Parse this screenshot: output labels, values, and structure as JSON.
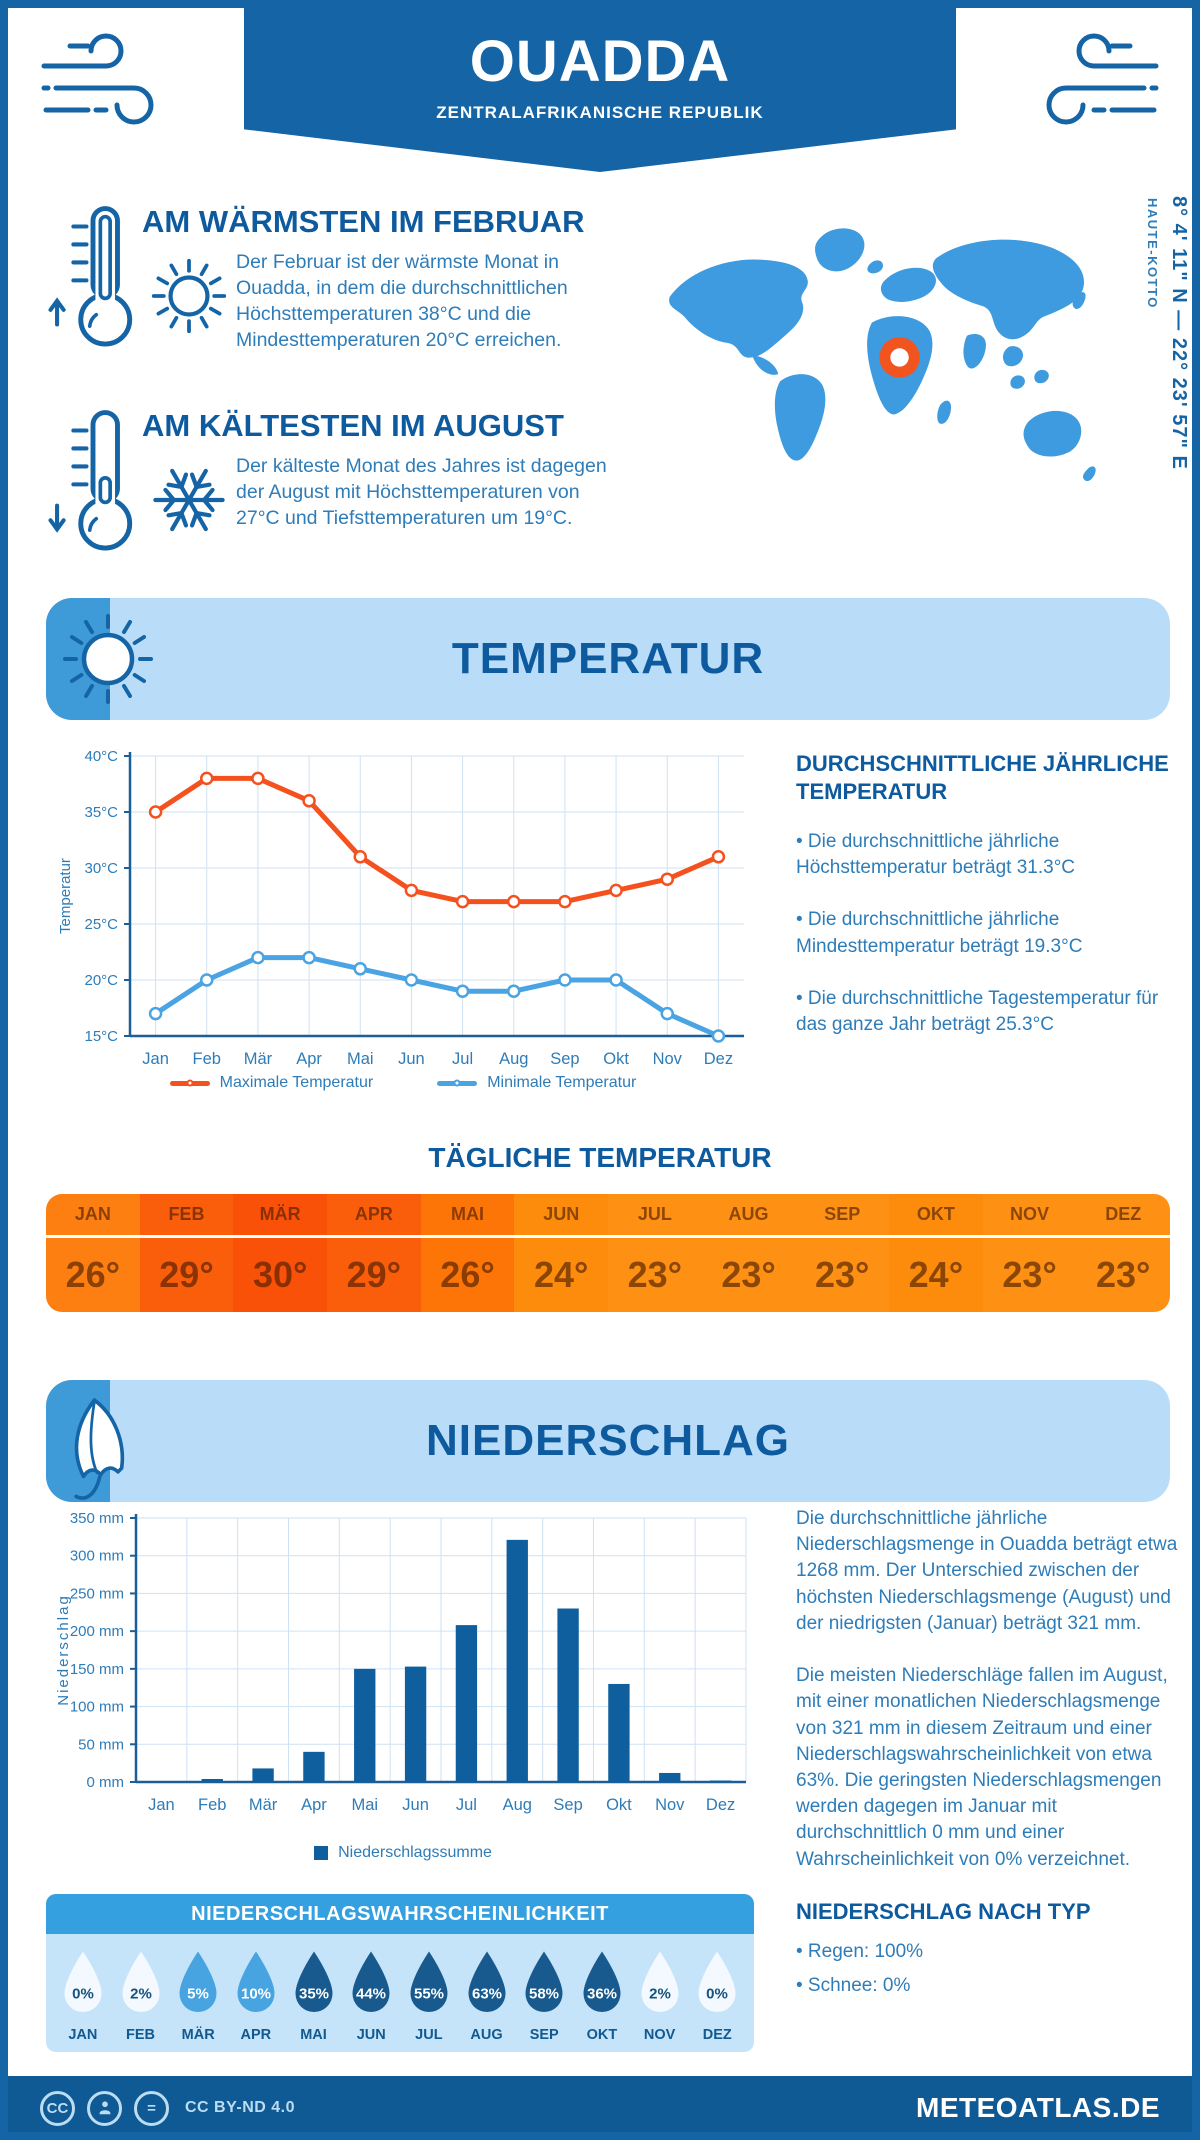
{
  "header": {
    "title": "OUADDA",
    "subtitle": "ZENTRALAFRIKANISCHE REPUBLIK"
  },
  "highlights": {
    "warmest": {
      "title": "AM WÄRMSTEN IM FEBRUAR",
      "text": "Der Februar ist der wärmste Monat in Ouadda, in dem die durchschnittlichen Höchsttemperaturen 38°C und die Mindesttemperaturen 20°C erreichen."
    },
    "coldest": {
      "title": "AM KÄLTESTEN IM AUGUST",
      "text": "Der kälteste Monat des Jahres ist dagegen der August mit Höchsttemperaturen von 27°C und Tiefsttemperaturen um 19°C."
    }
  },
  "map": {
    "coordinates": "8° 4' 11\" N — 22° 23' 57\" E",
    "region": "HAUTE-KOTTO",
    "land_color": "#3e9bdf",
    "marker_color": "#f2541f"
  },
  "sections": {
    "temperature": "TEMPERATUR",
    "precipitation": "NIEDERSCHLAG"
  },
  "chart_data": [
    {
      "type": "line",
      "categories": [
        "Jan",
        "Feb",
        "Mär",
        "Apr",
        "Mai",
        "Jun",
        "Jul",
        "Aug",
        "Sep",
        "Okt",
        "Nov",
        "Dez"
      ],
      "series": [
        {
          "name": "Maximale Temperatur",
          "color": "#f4511e",
          "values": [
            35,
            38,
            38,
            36,
            31,
            28,
            27,
            27,
            27,
            28,
            29,
            31
          ]
        },
        {
          "name": "Minimale Temperatur",
          "color": "#4aa3e3",
          "values": [
            17,
            20,
            22,
            22,
            21,
            20,
            19,
            19,
            20,
            20,
            17,
            15
          ]
        }
      ],
      "ylabel": "Temperatur",
      "xlabel": "",
      "title": "",
      "ylim": [
        15,
        40
      ],
      "ytick_step": 5,
      "ytick_suffix": "°C",
      "grid": true,
      "legend_position": "bottom"
    },
    {
      "type": "bar",
      "categories": [
        "Jan",
        "Feb",
        "Mär",
        "Apr",
        "Mai",
        "Jun",
        "Jul",
        "Aug",
        "Sep",
        "Okt",
        "Nov",
        "Dez"
      ],
      "series": [
        {
          "name": "Niederschlagssumme",
          "color": "#0f5f9e",
          "values": [
            0,
            4,
            18,
            40,
            150,
            153,
            208,
            321,
            230,
            130,
            12,
            2
          ]
        }
      ],
      "ylabel": "Niederschlag",
      "xlabel": "",
      "title": "",
      "ylim": [
        0,
        350
      ],
      "ytick_step": 50,
      "ytick_suffix": " mm",
      "grid": true,
      "legend_position": "bottom"
    }
  ],
  "temperature_summary": {
    "heading": "DURCHSCHNITTLICHE JÄHRLICHE TEMPERATUR",
    "bullets": [
      "Die durchschnittliche jährliche Höchsttemperatur beträgt 31.3°C",
      "Die durchschnittliche jährliche Mindesttemperatur beträgt 19.3°C",
      "Die durchschnittliche Tagestemperatur für das ganze Jahr beträgt 25.3°C"
    ]
  },
  "daily_temperature": {
    "heading": "TÄGLICHE TEMPERATUR",
    "months": [
      "JAN",
      "FEB",
      "MÄR",
      "APR",
      "MAI",
      "JUN",
      "JUL",
      "AUG",
      "SEP",
      "OKT",
      "NOV",
      "DEZ"
    ],
    "values": [
      "26°",
      "29°",
      "30°",
      "29°",
      "26°",
      "24°",
      "23°",
      "23°",
      "23°",
      "24°",
      "23°",
      "23°"
    ],
    "column_colors": [
      "#fd7e11",
      "#fa5e0b",
      "#f95107",
      "#fa5e0b",
      "#fc7506",
      "#fd8b0c",
      "#fe9013",
      "#fe9013",
      "#fe9013",
      "#fd8b0c",
      "#fe9013",
      "#fe9013"
    ]
  },
  "precipitation_summary": {
    "paragraphs": [
      "Die durchschnittliche jährliche Niederschlagsmenge in Ouadda beträgt etwa 1268 mm. Der Unterschied zwischen der höchsten Niederschlagsmenge (August) und der niedrigsten (Januar) beträgt 321 mm.",
      "Die meisten Niederschläge fallen im August, mit einer monatlichen Niederschlagsmenge von 321 mm in diesem Zeitraum und einer Niederschlagswahrscheinlichkeit von etwa 63%. Die geringsten Niederschlagsmengen werden dagegen im Januar mit durchschnittlich 0 mm und einer Wahrscheinlichkeit von 0% verzeichnet."
    ],
    "type_heading": "NIEDERSCHLAG NACH TYP",
    "type_bullets": [
      "Regen: 100%",
      "Schnee: 0%"
    ]
  },
  "precipitation_probability": {
    "heading": "NIEDERSCHLAGSWAHRSCHEINLICHKEIT",
    "months": [
      "JAN",
      "FEB",
      "MÄR",
      "APR",
      "MAI",
      "JUN",
      "JUL",
      "AUG",
      "SEP",
      "OKT",
      "NOV",
      "DEZ"
    ],
    "values": [
      0,
      2,
      5,
      10,
      35,
      44,
      55,
      63,
      58,
      36,
      2,
      0
    ],
    "colors": {
      "low": "#f3f9fe",
      "mid": "#47a4e0",
      "high": "#185a8e",
      "text_on_light": "#14527f",
      "text_on_dark": "#ffffff"
    }
  },
  "footer": {
    "license": "CC BY-ND 4.0",
    "site": "METEOATLAS.DE"
  },
  "theme": {
    "primary": "#1565a6",
    "heading": "#0d5a9e",
    "body_text": "#2e7cb8",
    "banner_bg": "#b9ddf8",
    "banner_accent": "#3f9bd8"
  }
}
